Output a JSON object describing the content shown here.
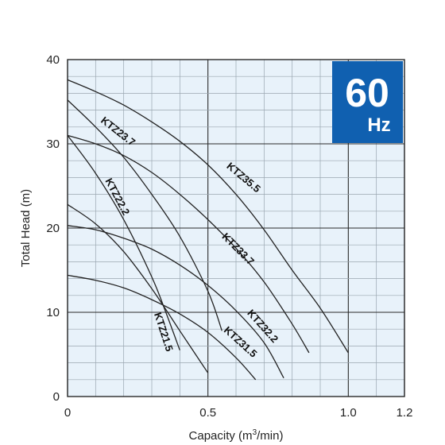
{
  "chart_data": {
    "type": "line",
    "xlabel": "Capacity (m3/min)",
    "xlabel_parts": {
      "before": "Capacity (m",
      "sup": "3",
      "after": "/min)"
    },
    "ylabel": "Total Head (m)",
    "xlim": [
      0,
      1.2
    ],
    "ylim": [
      0,
      40
    ],
    "x_ticks": [
      "0",
      "0.5",
      "1.0",
      "1.2"
    ],
    "x_tick_values": [
      0,
      0.5,
      1.0,
      1.2
    ],
    "y_ticks": [
      "0",
      "10",
      "20",
      "30",
      "40"
    ],
    "y_tick_values": [
      0,
      10,
      20,
      30,
      40
    ],
    "minor_x_step": 0.1,
    "minor_y_step": 2,
    "grid": true,
    "badge": {
      "big": "60",
      "small": "Hz",
      "color": "#1060b0"
    },
    "colors": {
      "background": "#e8f2fa",
      "grid": "#9aa6b0",
      "major_grid": "#2a2a2a",
      "curve": "#222222"
    },
    "series": [
      {
        "name": "KTZ21.5",
        "x": [
          0,
          0.1,
          0.2,
          0.3,
          0.4,
          0.5
        ],
        "y": [
          22.8,
          20.5,
          17.2,
          12.8,
          7.8,
          2.8
        ]
      },
      {
        "name": "KTZ22.2",
        "x": [
          0,
          0.1,
          0.2,
          0.3,
          0.35,
          0.4
        ],
        "y": [
          31.0,
          26.5,
          21.0,
          14.2,
          10.0,
          5.5
        ]
      },
      {
        "name": "KTZ23.7",
        "x": [
          0,
          0.1,
          0.2,
          0.3,
          0.4,
          0.5,
          0.55
        ],
        "y": [
          35.2,
          32.0,
          28.4,
          24.0,
          19.0,
          12.5,
          7.8
        ]
      },
      {
        "name": "KTZ31.5",
        "x": [
          0,
          0.1,
          0.2,
          0.3,
          0.4,
          0.5,
          0.6,
          0.67
        ],
        "y": [
          14.4,
          13.8,
          12.9,
          11.5,
          9.8,
          7.6,
          4.6,
          2.0
        ]
      },
      {
        "name": "KTZ32.2",
        "x": [
          0,
          0.1,
          0.2,
          0.3,
          0.4,
          0.5,
          0.6,
          0.7,
          0.77
        ],
        "y": [
          20.3,
          19.8,
          18.8,
          17.5,
          15.6,
          13.2,
          10.2,
          6.4,
          2.2
        ]
      },
      {
        "name": "KTZ33.7",
        "x": [
          0,
          0.1,
          0.2,
          0.3,
          0.4,
          0.5,
          0.6,
          0.7,
          0.8,
          0.86
        ],
        "y": [
          31.0,
          30.0,
          28.6,
          26.6,
          24.0,
          21.0,
          17.6,
          13.6,
          8.6,
          5.2
        ]
      },
      {
        "name": "KTZ35.5",
        "x": [
          0,
          0.1,
          0.2,
          0.3,
          0.4,
          0.5,
          0.6,
          0.7,
          0.8,
          0.9,
          1.0
        ],
        "y": [
          37.6,
          36.2,
          34.6,
          32.6,
          30.3,
          27.5,
          24.0,
          19.8,
          15.0,
          10.5,
          5.2
        ]
      }
    ]
  }
}
